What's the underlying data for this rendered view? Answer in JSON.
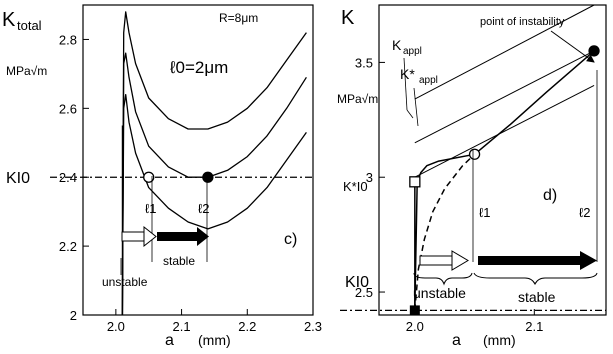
{
  "chart_data": [
    {
      "type": "line",
      "panel_label": "c)",
      "ylabel_main": "K",
      "ylabel_sub": "total",
      "yunit": "MPa√m",
      "xlabel": "a",
      "xunit": "(mm)",
      "annotation_r": "R=8μm",
      "annotation_l0": "ℓ0=2μm",
      "xlim": [
        1.95,
        2.3
      ],
      "ylim": [
        2.0,
        2.9
      ],
      "xticks": [
        "2.0",
        "2.1",
        "2.2",
        "2.3"
      ],
      "xtick_values": [
        2.0,
        2.1,
        2.2,
        2.3
      ],
      "yticks": [
        "2",
        "2.2",
        "2.4",
        "2.6",
        "2.8"
      ],
      "ytick_values": [
        2.0,
        2.2,
        2.4,
        2.6,
        2.8
      ],
      "k_level_label": "KI0",
      "k_level_value": 2.4,
      "series": [
        {
          "x": [
            2.01,
            2.012,
            2.015,
            2.02,
            2.03,
            2.05,
            2.08,
            2.11,
            2.14,
            2.17,
            2.2,
            2.23,
            2.26,
            2.29
          ],
          "values": [
            2.0,
            2.82,
            2.88,
            2.82,
            2.73,
            2.63,
            2.57,
            2.54,
            2.54,
            2.56,
            2.6,
            2.66,
            2.74,
            2.82
          ]
        },
        {
          "x": [
            2.01,
            2.012,
            2.015,
            2.02,
            2.03,
            2.05,
            2.08,
            2.11,
            2.14,
            2.17,
            2.2,
            2.23,
            2.26,
            2.29
          ],
          "values": [
            2.0,
            2.73,
            2.76,
            2.69,
            2.59,
            2.49,
            2.43,
            2.4,
            2.4,
            2.42,
            2.46,
            2.52,
            2.6,
            2.69
          ]
        },
        {
          "x": [
            2.01,
            2.012,
            2.015,
            2.02,
            2.03,
            2.05,
            2.08,
            2.11,
            2.14,
            2.17,
            2.2,
            2.23,
            2.26,
            2.29
          ],
          "values": [
            2.0,
            2.6,
            2.64,
            2.56,
            2.47,
            2.37,
            2.31,
            2.27,
            2.25,
            2.27,
            2.31,
            2.37,
            2.45,
            2.53
          ]
        }
      ],
      "points": [
        {
          "label": "ℓ1",
          "x": 2.05,
          "y": 2.4,
          "fill": "open"
        },
        {
          "label": "ℓ2",
          "x": 2.14,
          "y": 2.4,
          "fill": "filled"
        }
      ],
      "region_labels": {
        "unstable": "unstable",
        "stable": "stable"
      }
    },
    {
      "type": "line",
      "panel_label": "d)",
      "ylabel_main": "K",
      "yunit": "MPa√m",
      "xlabel": "a",
      "xunit": "(mm)",
      "xlim": [
        1.97,
        2.16
      ],
      "ylim": [
        2.4,
        3.75
      ],
      "xticks": [
        "2.0",
        "2.1"
      ],
      "xtick_values": [
        2.0,
        2.1
      ],
      "yticks": [
        "2.5",
        "3",
        "3.5"
      ],
      "ytick_values": [
        2.5,
        3.0,
        3.5
      ],
      "k_level_label": "KI0",
      "k_level_value": 2.42,
      "k_star_label": "K*I0",
      "kappl_label": "K",
      "kappl_sub": "appl",
      "kstarappl_label": "K*",
      "kstarappl_sub": "appl",
      "instability_label": "point of instability",
      "l1_label": "ℓ1",
      "l2_label": "ℓ2",
      "series": [
        {
          "name": "K_appl line 1",
          "x": [
            2.0,
            2.15
          ],
          "values": [
            3.34,
            3.75
          ]
        },
        {
          "name": "K_appl line 2",
          "x": [
            2.0,
            2.15
          ],
          "values": [
            3.15,
            3.55
          ]
        },
        {
          "name": "K_appl line 3",
          "x": [
            2.0,
            2.15
          ],
          "values": [
            3.0,
            3.4
          ]
        },
        {
          "name": "K* solid",
          "x": [
            2.0,
            2.002,
            2.005,
            2.01,
            2.02,
            2.05,
            2.08,
            2.11,
            2.15
          ],
          "values": [
            2.42,
            2.98,
            3.02,
            3.05,
            3.07,
            3.1,
            3.23,
            3.37,
            3.55
          ]
        },
        {
          "name": "K* dashed",
          "x": [
            2.0,
            2.003,
            2.008,
            2.015,
            2.025,
            2.04,
            2.05
          ],
          "values": [
            2.42,
            2.6,
            2.73,
            2.85,
            2.95,
            3.05,
            3.1
          ]
        }
      ],
      "points": [
        {
          "label": "KI0",
          "x": 2.0,
          "y": 2.42,
          "fill": "square-filled"
        },
        {
          "label": "K*I0",
          "x": 2.0,
          "y": 2.98,
          "fill": "square-open"
        },
        {
          "label": "ℓ1",
          "x": 2.05,
          "y": 3.1,
          "fill": "open"
        },
        {
          "label": "instability",
          "x": 2.15,
          "y": 3.55,
          "fill": "filled"
        }
      ],
      "region_labels": {
        "unstable": "unstable",
        "stable": "stable"
      }
    }
  ]
}
